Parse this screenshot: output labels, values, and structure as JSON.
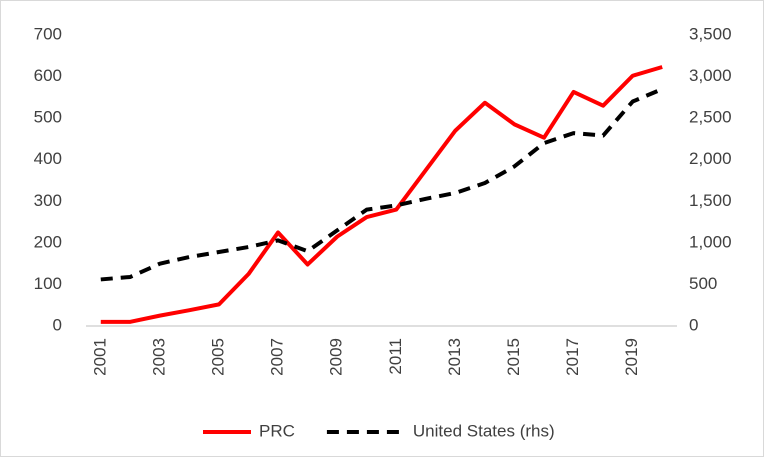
{
  "chart_data": {
    "type": "line",
    "categories": [
      "2001",
      null,
      "2003",
      null,
      "2005",
      null,
      "2007",
      null,
      "2009",
      null,
      "2011",
      null,
      "2013",
      null,
      "2015",
      null,
      "2017",
      null,
      "2019",
      null
    ],
    "series": [
      {
        "name": "PRC",
        "color": "#ff0000",
        "dash": false,
        "values": [
          10,
          10,
          25,
          38,
          52,
          125,
          225,
          148,
          215,
          262,
          280,
          375,
          470,
          537,
          485,
          453,
          563,
          530,
          602,
          623
        ]
      },
      {
        "name": "United States (rhs)",
        "color": "#000000",
        "dash": true,
        "axis": "y2",
        "values": [
          560,
          590,
          750,
          830,
          890,
          950,
          1030,
          900,
          1150,
          1400,
          1450,
          1530,
          1600,
          1720,
          1920,
          2200,
          2320,
          2290,
          2700,
          2850
        ]
      }
    ],
    "ylim": [
      0,
      700
    ],
    "yticks": [
      0,
      100,
      200,
      300,
      400,
      500,
      600,
      700
    ],
    "y2lim": [
      0,
      3500
    ],
    "y2ticks": [
      0,
      500,
      {
        "value": 1000,
        "label": "1,000"
      },
      {
        "value": 1500,
        "label": "1,500"
      },
      {
        "value": 2000,
        "label": "2,000"
      },
      {
        "value": 2500,
        "label": "2,500"
      },
      {
        "value": 3000,
        "label": "3,000"
      },
      {
        "value": 3500,
        "label": "3,500"
      }
    ],
    "grid": false,
    "legend": "bottom"
  }
}
